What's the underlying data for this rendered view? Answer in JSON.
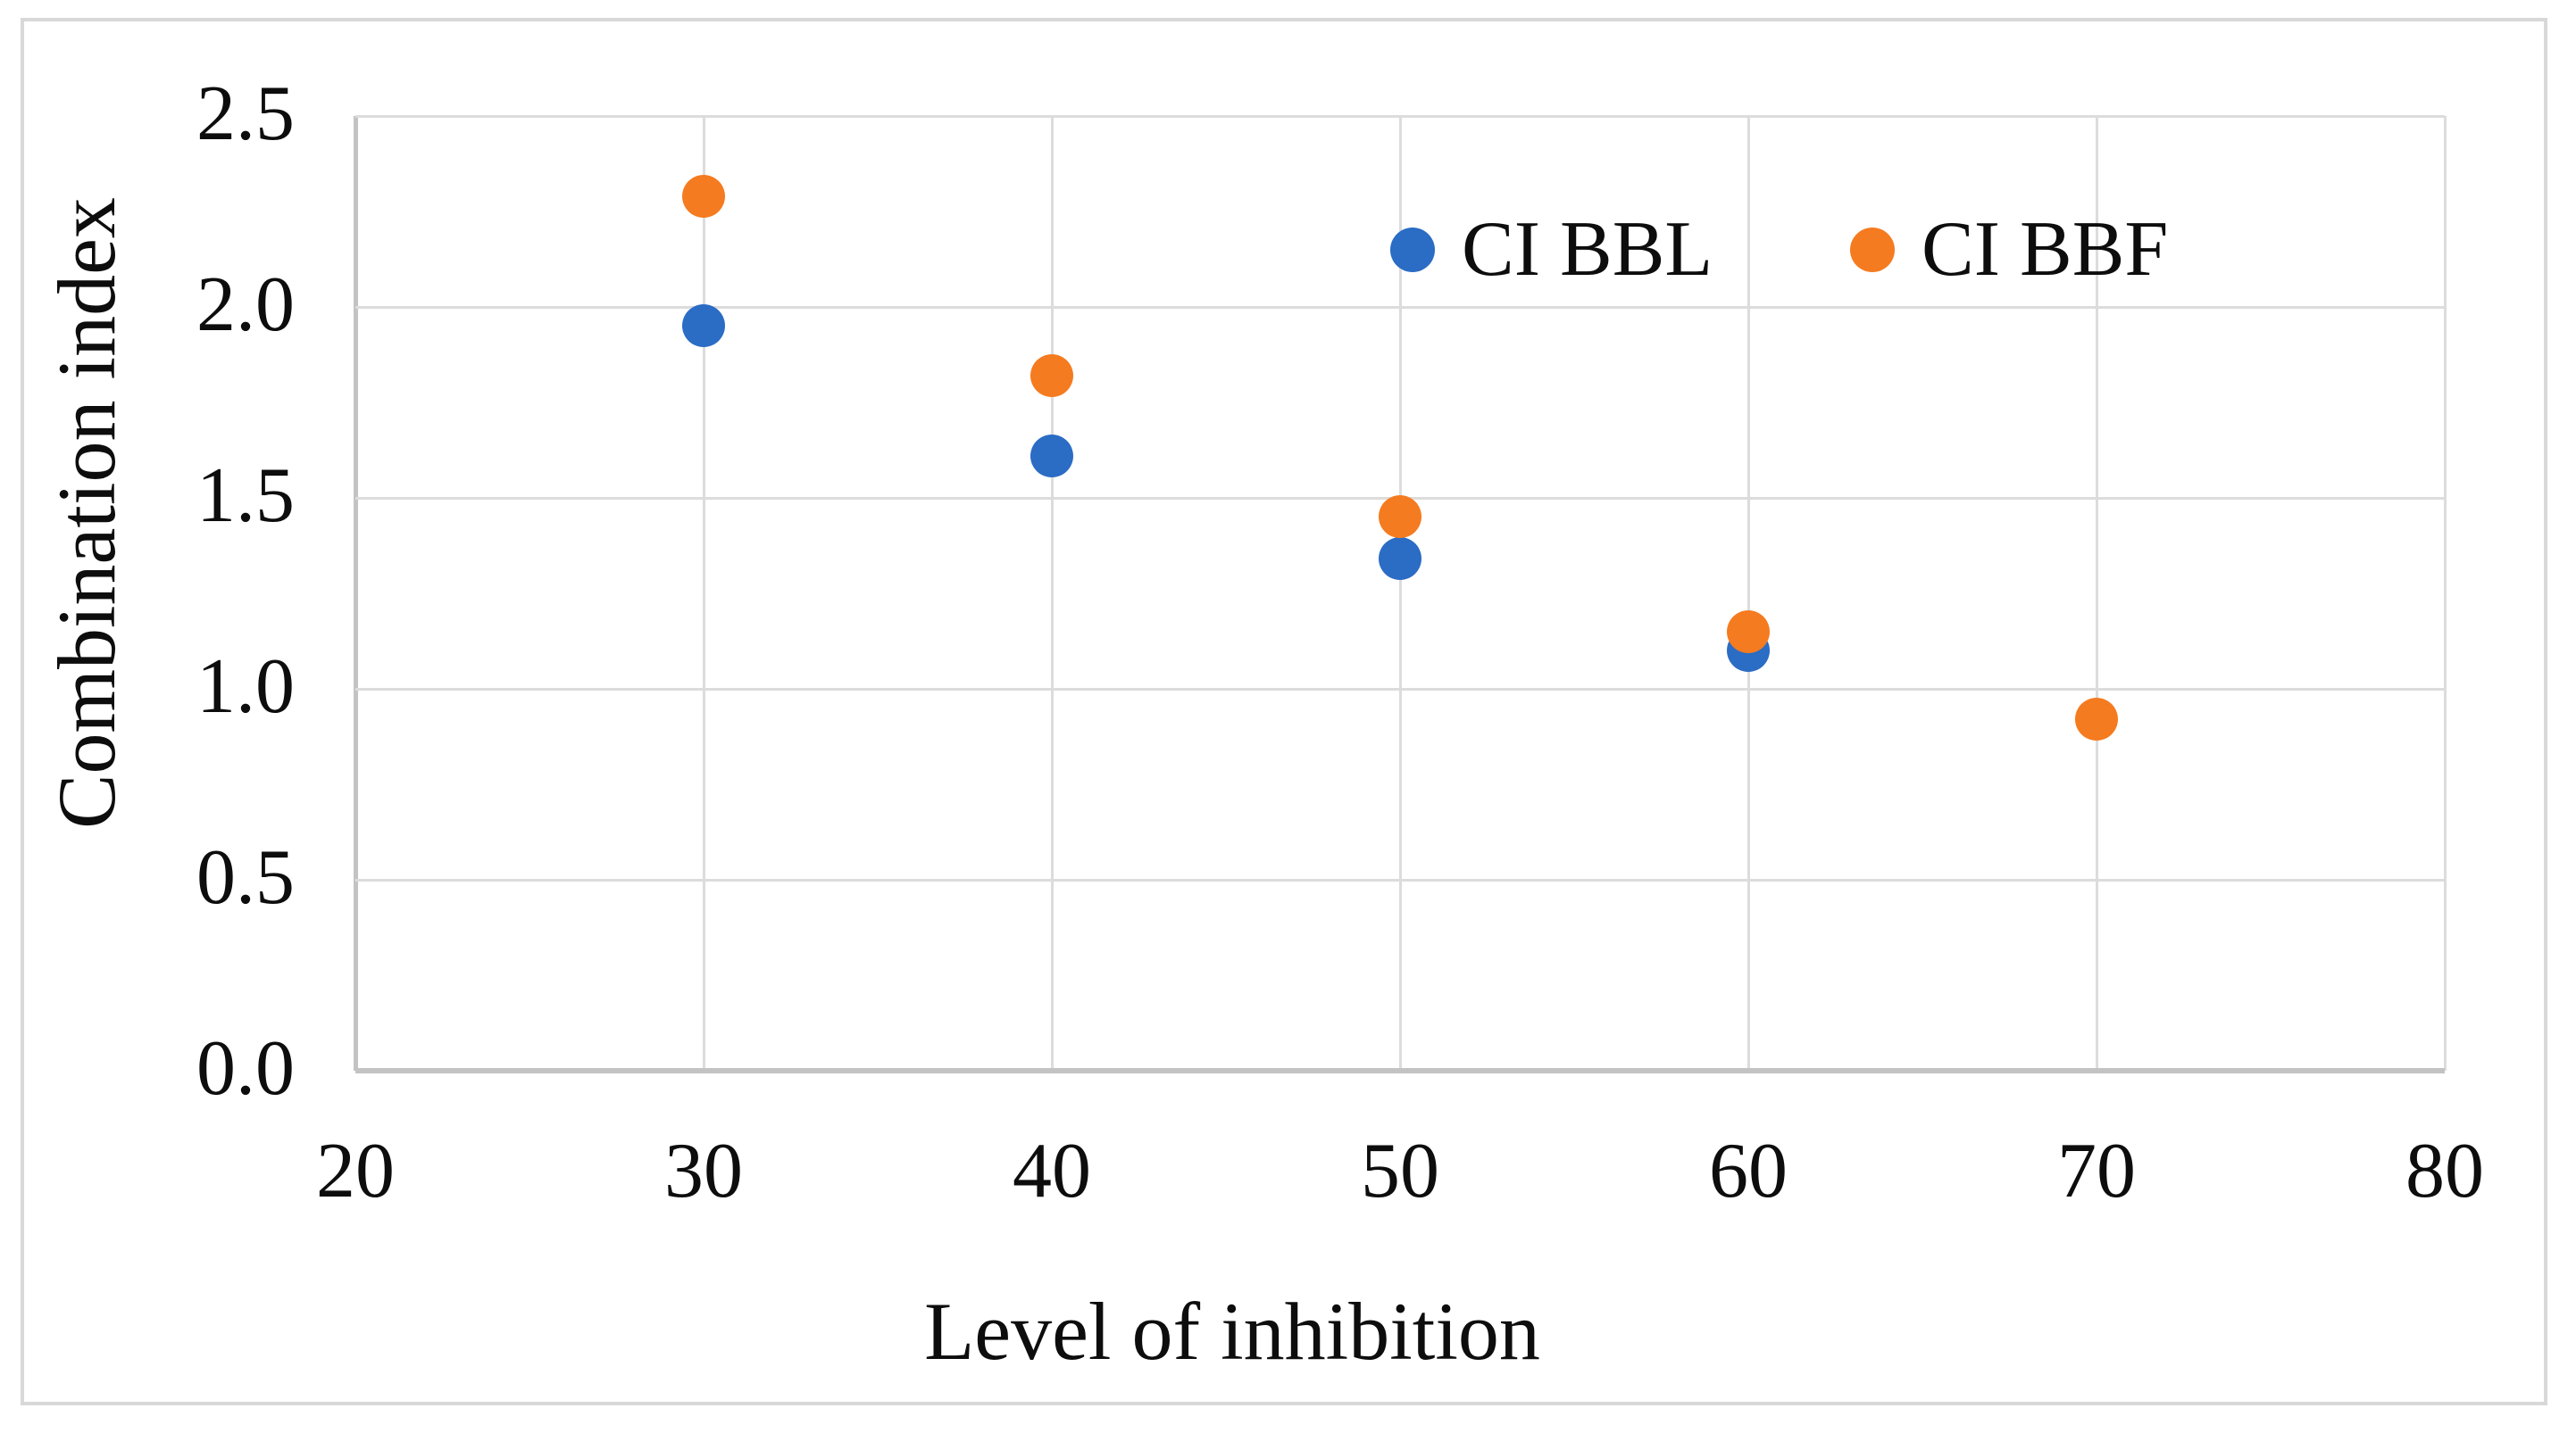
{
  "chart_data": {
    "type": "scatter",
    "title": "",
    "xlabel": "Level of inhibition",
    "ylabel": "Combination index",
    "xlim": [
      20,
      80
    ],
    "ylim": [
      0,
      2.5
    ],
    "x_ticks": [
      "20",
      "30",
      "40",
      "50",
      "60",
      "70",
      "80"
    ],
    "y_ticks": [
      "0.0",
      "0.5",
      "1.0",
      "1.5",
      "2.0",
      "2.5"
    ],
    "grid": true,
    "legend_position": "inside-top",
    "series": [
      {
        "name": "CI BBL",
        "color": "#2b6cc4",
        "points": [
          {
            "x": 30,
            "y": 1.95
          },
          {
            "x": 40,
            "y": 1.61
          },
          {
            "x": 50,
            "y": 1.34
          },
          {
            "x": 60,
            "y": 1.1
          }
        ]
      },
      {
        "name": "CI BBF",
        "color": "#f57b20",
        "points": [
          {
            "x": 30,
            "y": 2.29
          },
          {
            "x": 40,
            "y": 1.82
          },
          {
            "x": 50,
            "y": 1.45
          },
          {
            "x": 60,
            "y": 1.15
          },
          {
            "x": 70,
            "y": 0.92
          }
        ]
      }
    ]
  },
  "colors": {
    "gridline": "#dcdcdc",
    "axis_line": "#c3c3c3",
    "figure_border": "#d8d8d8",
    "text": "#0d0d0d",
    "background": "#ffffff"
  }
}
